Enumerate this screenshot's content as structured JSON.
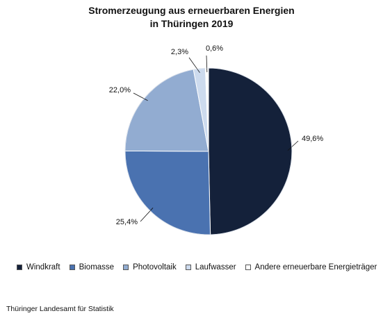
{
  "chart_data": {
    "type": "pie",
    "title_lines": [
      "Stromerzeugung aus erneuerbaren Energien",
      "in Thüringen 2019"
    ],
    "categories": [
      "Windkraft",
      "Biomasse",
      "Photovoltaik",
      "Laufwasser",
      "Andere erneuerbare Energieträger"
    ],
    "values": [
      49.6,
      25.4,
      22.0,
      2.3,
      0.6
    ],
    "data_labels": [
      "49,6%",
      "25,4%",
      "22,0%",
      "2,3%",
      "0,6%"
    ],
    "colors": [
      "#14213a",
      "#4a72b0",
      "#92acd1",
      "#cddbee",
      "#ffffff"
    ],
    "legend_position": "bottom",
    "start": "12 o'clock",
    "direction": "clockwise"
  },
  "source": "Thüringer Landesamt für Statistik"
}
